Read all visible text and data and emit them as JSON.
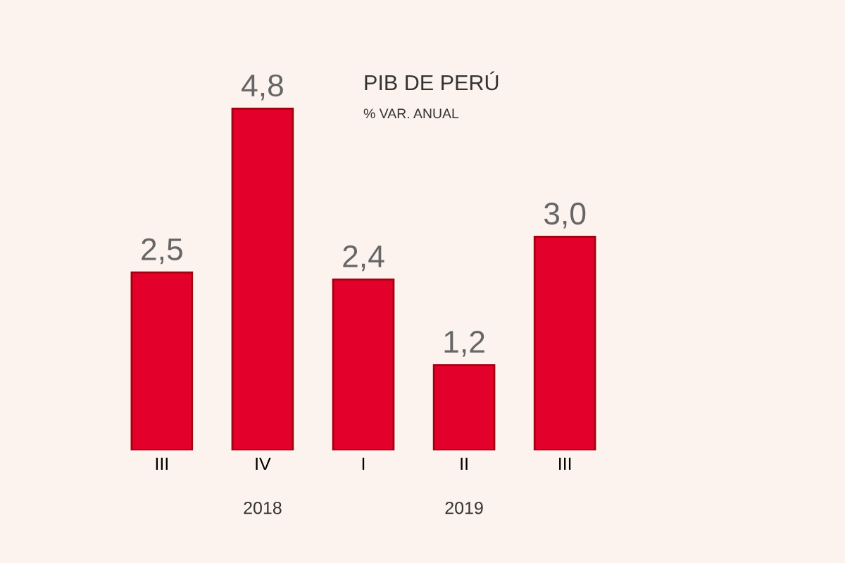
{
  "chart_data": {
    "type": "bar",
    "title": "PIB DE PERÚ",
    "subtitle": "% VAR. ANUAL",
    "categories": [
      "III",
      "IV",
      "I",
      "II",
      "III"
    ],
    "values": [
      2.5,
      4.8,
      2.4,
      1.2,
      3.0
    ],
    "value_labels": [
      "2,5",
      "4,8",
      "2,4",
      "1,2",
      "3,0"
    ],
    "color": "#e3002b",
    "annotations": [
      "2018",
      "2019"
    ],
    "grid": false,
    "legend": false
  }
}
